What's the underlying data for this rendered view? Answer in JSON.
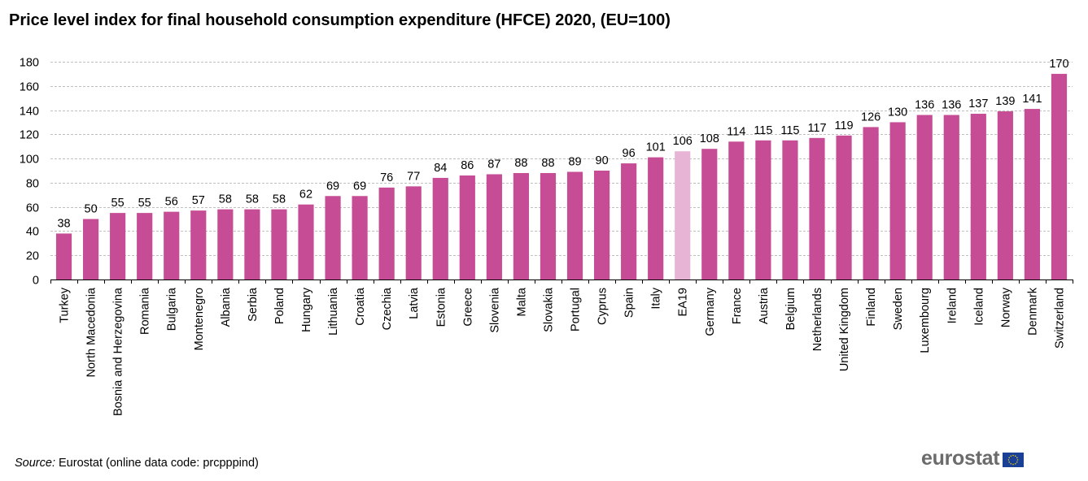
{
  "chart_data": {
    "type": "bar",
    "title": "Price level index for final household consumption expenditure (HFCE) 2020, (EU=100)",
    "xlabel": "",
    "ylabel": "",
    "ylim": [
      0,
      180
    ],
    "yticks": [
      0,
      20,
      40,
      60,
      80,
      100,
      120,
      140,
      160,
      180
    ],
    "grid": true,
    "legend": "none",
    "categories": [
      "Turkey",
      "North Macedonia",
      "Bosnia and Herzegovina",
      "Romania",
      "Bulgaria",
      "Montenegro",
      "Albania",
      "Serbia",
      "Poland",
      "Hungary",
      "Lithuania",
      "Croatia",
      "Czechia",
      "Latvia",
      "Estonia",
      "Greece",
      "Slovenia",
      "Malta",
      "Slovakia",
      "Portugal",
      "Cyprus",
      "Spain",
      "Italy",
      "EA19",
      "Germany",
      "France",
      "Austria",
      "Belgium",
      "Netherlands",
      "United Kingdom",
      "Finland",
      "Sweden",
      "Luxembourg",
      "Ireland",
      "Iceland",
      "Norway",
      "Denmark",
      "Switzerland"
    ],
    "values": [
      38,
      50,
      55,
      55,
      56,
      57,
      58,
      58,
      58,
      62,
      69,
      69,
      76,
      77,
      84,
      86,
      87,
      88,
      88,
      89,
      90,
      96,
      101,
      106,
      108,
      114,
      115,
      115,
      117,
      119,
      126,
      130,
      136,
      136,
      137,
      139,
      141,
      170
    ],
    "highlight_category": "EA19",
    "colors": {
      "bar": "#c64c95",
      "highlight": "#e8b4d6",
      "grid": "#bfbfbf",
      "axis": "#000000"
    }
  },
  "footer": {
    "source_label": "Source:",
    "source_text": " Eurostat (online data code: prcpppind)",
    "logo_text": "eurostat",
    "logo_flag": "eu-flag-icon"
  }
}
